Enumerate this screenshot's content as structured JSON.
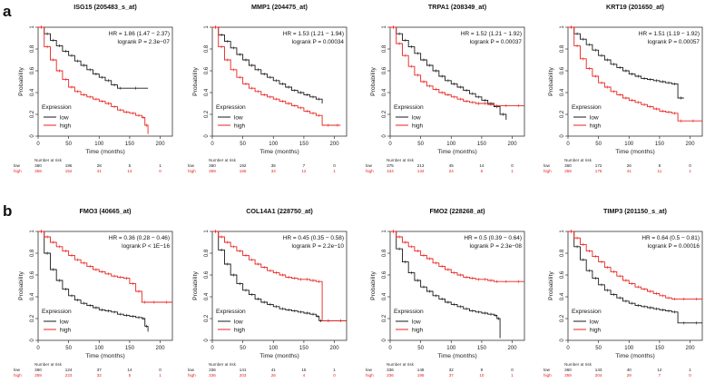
{
  "figure": {
    "panel_labels": [
      "a",
      "b"
    ],
    "legend_title": "Expression",
    "legend_low": "low",
    "legend_high": "high",
    "xlabel": "Time (months)",
    "ylabel": "Probability",
    "risk_header": "Number at risk",
    "risk_low_label": "low",
    "risk_high_label": "high",
    "colors": {
      "low": "#1a1a1a",
      "high": "#e8231e",
      "axis": "#333333"
    }
  },
  "chart_data": [
    {
      "type": "line",
      "title": "ISG15 (205483_s_at)",
      "hr_text": "HR = 1.86 (1.47 − 2.37)",
      "p_text": "logrank P = 2.3e−07",
      "xlim": [
        0,
        220
      ],
      "ylim": [
        0,
        1
      ],
      "xticks": [
        0,
        50,
        100,
        150,
        200
      ],
      "yticks": [
        0,
        0.2,
        0.4,
        0.6,
        0.8,
        1
      ],
      "series": [
        {
          "name": "low",
          "x": [
            0,
            10,
            20,
            30,
            40,
            50,
            60,
            70,
            80,
            90,
            100,
            110,
            120,
            130,
            140,
            180
          ],
          "y": [
            1,
            0.94,
            0.88,
            0.83,
            0.78,
            0.74,
            0.69,
            0.65,
            0.61,
            0.57,
            0.54,
            0.51,
            0.47,
            0.44,
            0.44,
            0.44
          ]
        },
        {
          "name": "high",
          "x": [
            0,
            10,
            20,
            30,
            40,
            50,
            60,
            70,
            80,
            90,
            100,
            110,
            120,
            130,
            140,
            150,
            160,
            170,
            175,
            180
          ],
          "y": [
            1,
            0.82,
            0.7,
            0.6,
            0.52,
            0.45,
            0.41,
            0.38,
            0.36,
            0.34,
            0.32,
            0.3,
            0.27,
            0.24,
            0.22,
            0.21,
            0.19,
            0.17,
            0.1,
            0.02
          ]
        }
      ],
      "risk_times": [
        0,
        50,
        100,
        150,
        200
      ],
      "risk_low": [
        "360",
        "195",
        "28",
        "5",
        "1"
      ],
      "risk_high": [
        "359",
        "152",
        "41",
        "14",
        "0"
      ]
    },
    {
      "type": "line",
      "title": "MMP1 (204475_at)",
      "hr_text": "HR = 1.53 (1.21 − 1.94)",
      "p_text": "logrank P = 0.00034",
      "xlim": [
        0,
        220
      ],
      "ylim": [
        0,
        1
      ],
      "xticks": [
        0,
        50,
        100,
        150,
        200
      ],
      "yticks": [
        0,
        0.2,
        0.4,
        0.6,
        0.8,
        1
      ],
      "series": [
        {
          "name": "low",
          "x": [
            0,
            10,
            20,
            30,
            40,
            50,
            60,
            70,
            80,
            90,
            100,
            110,
            120,
            130,
            140,
            150,
            160,
            170,
            180
          ],
          "y": [
            1,
            0.93,
            0.87,
            0.81,
            0.75,
            0.7,
            0.65,
            0.61,
            0.57,
            0.54,
            0.51,
            0.48,
            0.45,
            0.42,
            0.4,
            0.38,
            0.36,
            0.34,
            0.3
          ]
        },
        {
          "name": "high",
          "x": [
            0,
            10,
            20,
            30,
            40,
            50,
            60,
            70,
            80,
            90,
            100,
            110,
            120,
            130,
            140,
            150,
            160,
            170,
            180,
            200,
            210
          ],
          "y": [
            1,
            0.82,
            0.7,
            0.61,
            0.54,
            0.48,
            0.44,
            0.41,
            0.38,
            0.36,
            0.34,
            0.32,
            0.3,
            0.28,
            0.26,
            0.23,
            0.21,
            0.19,
            0.1,
            0.1,
            0.1
          ]
        }
      ],
      "risk_times": [
        0,
        50,
        100,
        150,
        200
      ],
      "risk_low": [
        "360",
        "192",
        "35",
        "7",
        "0"
      ],
      "risk_high": [
        "359",
        "165",
        "34",
        "12",
        "1"
      ]
    },
    {
      "type": "line",
      "title": "TRPA1 (208349_at)",
      "hr_text": "HR = 1.52 (1.21 − 1.92)",
      "p_text": "logrank P = 0.00037",
      "xlim": [
        0,
        220
      ],
      "ylim": [
        0,
        1
      ],
      "xticks": [
        0,
        50,
        100,
        150,
        200
      ],
      "yticks": [
        0,
        0.2,
        0.4,
        0.6,
        0.8,
        1
      ],
      "series": [
        {
          "name": "low",
          "x": [
            0,
            10,
            20,
            30,
            40,
            50,
            60,
            70,
            80,
            90,
            100,
            110,
            120,
            130,
            140,
            150,
            160,
            170,
            180,
            190
          ],
          "y": [
            1,
            0.94,
            0.88,
            0.82,
            0.76,
            0.7,
            0.65,
            0.6,
            0.55,
            0.51,
            0.48,
            0.45,
            0.42,
            0.39,
            0.36,
            0.33,
            0.3,
            0.27,
            0.2,
            0.15
          ]
        },
        {
          "name": "high",
          "x": [
            0,
            10,
            20,
            30,
            40,
            50,
            60,
            70,
            80,
            90,
            100,
            110,
            120,
            130,
            140,
            150,
            160,
            170,
            180,
            200,
            220
          ],
          "y": [
            1,
            0.85,
            0.74,
            0.64,
            0.56,
            0.5,
            0.46,
            0.43,
            0.4,
            0.38,
            0.36,
            0.34,
            0.32,
            0.31,
            0.3,
            0.3,
            0.29,
            0.28,
            0.28,
            0.28,
            0.28
          ]
        }
      ],
      "risk_times": [
        0,
        50,
        100,
        150,
        200
      ],
      "risk_low": [
        "375",
        "213",
        "45",
        "14",
        "0"
      ],
      "risk_high": [
        "344",
        "134",
        "24",
        "5",
        "1"
      ]
    },
    {
      "type": "line",
      "title": "KRT19 (201650_at)",
      "hr_text": "HR = 1.51 (1.19 − 1.92)",
      "p_text": "logrank P = 0.00057",
      "xlim": [
        0,
        220
      ],
      "ylim": [
        0,
        1
      ],
      "xticks": [
        0,
        50,
        100,
        150,
        200
      ],
      "yticks": [
        0,
        0.2,
        0.4,
        0.6,
        0.8,
        1
      ],
      "series": [
        {
          "name": "low",
          "x": [
            0,
            10,
            20,
            30,
            40,
            50,
            60,
            70,
            80,
            90,
            100,
            110,
            120,
            130,
            140,
            150,
            160,
            170,
            180,
            190
          ],
          "y": [
            1,
            0.94,
            0.89,
            0.84,
            0.79,
            0.74,
            0.7,
            0.66,
            0.63,
            0.6,
            0.57,
            0.55,
            0.53,
            0.52,
            0.51,
            0.5,
            0.49,
            0.48,
            0.35,
            0.35
          ]
        },
        {
          "name": "high",
          "x": [
            0,
            10,
            20,
            30,
            40,
            50,
            60,
            70,
            80,
            90,
            100,
            110,
            120,
            130,
            140,
            150,
            160,
            170,
            180,
            190,
            220
          ],
          "y": [
            1,
            0.83,
            0.71,
            0.62,
            0.55,
            0.49,
            0.45,
            0.41,
            0.38,
            0.35,
            0.33,
            0.31,
            0.29,
            0.27,
            0.25,
            0.23,
            0.22,
            0.21,
            0.14,
            0.14,
            0.14
          ]
        }
      ],
      "risk_times": [
        0,
        50,
        100,
        150,
        200
      ],
      "risk_low": [
        "360",
        "172",
        "26",
        "8",
        "0"
      ],
      "risk_high": [
        "359",
        "175",
        "41",
        "11",
        "1"
      ]
    },
    {
      "type": "line",
      "title": "FMO3 (40665_at)",
      "hr_text": "HR = 0.36 (0.28 − 0.46)",
      "p_text": "logrank P < 1E−16",
      "xlim": [
        0,
        220
      ],
      "ylim": [
        0,
        1
      ],
      "xticks": [
        0,
        50,
        100,
        150,
        200
      ],
      "yticks": [
        0,
        0.2,
        0.4,
        0.6,
        0.8,
        1
      ],
      "series": [
        {
          "name": "low",
          "x": [
            0,
            10,
            20,
            30,
            40,
            50,
            60,
            70,
            80,
            90,
            100,
            110,
            120,
            130,
            140,
            150,
            160,
            170,
            175,
            180
          ],
          "y": [
            1,
            0.8,
            0.65,
            0.55,
            0.47,
            0.41,
            0.37,
            0.34,
            0.32,
            0.3,
            0.28,
            0.27,
            0.26,
            0.24,
            0.23,
            0.22,
            0.21,
            0.2,
            0.13,
            0.08
          ]
        },
        {
          "name": "high",
          "x": [
            0,
            10,
            20,
            30,
            40,
            50,
            60,
            70,
            80,
            90,
            100,
            110,
            120,
            130,
            140,
            150,
            160,
            170,
            180,
            200,
            220
          ],
          "y": [
            1,
            0.95,
            0.9,
            0.86,
            0.82,
            0.78,
            0.74,
            0.71,
            0.68,
            0.65,
            0.63,
            0.61,
            0.59,
            0.58,
            0.57,
            0.52,
            0.45,
            0.35,
            0.35,
            0.35,
            0.35
          ]
        }
      ],
      "risk_times": [
        0,
        50,
        100,
        150,
        200
      ],
      "risk_low": [
        "360",
        "124",
        "37",
        "14",
        "0"
      ],
      "risk_high": [
        "359",
        "223",
        "32",
        "5",
        "1"
      ]
    },
    {
      "type": "line",
      "title": "COL14A1 (228750_at)",
      "hr_text": "HR = 0.45 (0.35 − 0.58)",
      "p_text": "logrank P = 2.2e−10",
      "xlim": [
        0,
        220
      ],
      "ylim": [
        0,
        1
      ],
      "xticks": [
        0,
        50,
        100,
        150,
        200
      ],
      "yticks": [
        0,
        0.2,
        0.4,
        0.6,
        0.8,
        1
      ],
      "series": [
        {
          "name": "low",
          "x": [
            0,
            10,
            20,
            30,
            40,
            50,
            60,
            70,
            80,
            90,
            100,
            110,
            120,
            130,
            140,
            150,
            160,
            170,
            175,
            180,
            200,
            220
          ],
          "y": [
            1,
            0.83,
            0.7,
            0.6,
            0.52,
            0.46,
            0.42,
            0.38,
            0.35,
            0.33,
            0.31,
            0.29,
            0.28,
            0.27,
            0.26,
            0.25,
            0.24,
            0.22,
            0.18,
            0.18,
            0.18,
            0.18
          ]
        },
        {
          "name": "high",
          "x": [
            0,
            10,
            20,
            30,
            40,
            50,
            60,
            70,
            80,
            90,
            100,
            110,
            120,
            130,
            140,
            150,
            160,
            170,
            180,
            200,
            220
          ],
          "y": [
            1,
            0.95,
            0.9,
            0.86,
            0.82,
            0.78,
            0.74,
            0.7,
            0.67,
            0.64,
            0.62,
            0.6,
            0.58,
            0.57,
            0.56,
            0.56,
            0.55,
            0.54,
            0.18,
            0.18,
            0.18
          ]
        }
      ],
      "risk_times": [
        0,
        50,
        100,
        150,
        200
      ],
      "risk_low": [
        "336",
        "141",
        "41",
        "15",
        "1"
      ],
      "risk_high": [
        "336",
        "203",
        "26",
        "4",
        "0"
      ]
    },
    {
      "type": "line",
      "title": "FMO2 (228268_at)",
      "hr_text": "HR = 0.5 (0.39 − 0.64)",
      "p_text": "logrank P = 2.3e−08",
      "xlim": [
        0,
        220
      ],
      "ylim": [
        0,
        1
      ],
      "xticks": [
        0,
        50,
        100,
        150,
        200
      ],
      "yticks": [
        0,
        0.2,
        0.4,
        0.6,
        0.8,
        1
      ],
      "series": [
        {
          "name": "low",
          "x": [
            0,
            10,
            20,
            30,
            40,
            50,
            60,
            70,
            80,
            90,
            100,
            110,
            120,
            130,
            140,
            150,
            160,
            170,
            175,
            180
          ],
          "y": [
            1,
            0.84,
            0.72,
            0.62,
            0.55,
            0.49,
            0.45,
            0.41,
            0.38,
            0.35,
            0.33,
            0.31,
            0.29,
            0.27,
            0.26,
            0.25,
            0.24,
            0.23,
            0.2,
            0.02
          ]
        },
        {
          "name": "high",
          "x": [
            0,
            10,
            20,
            30,
            40,
            50,
            60,
            70,
            80,
            90,
            100,
            110,
            120,
            130,
            140,
            150,
            160,
            170,
            180,
            200,
            220
          ],
          "y": [
            1,
            0.95,
            0.9,
            0.86,
            0.82,
            0.78,
            0.75,
            0.71,
            0.68,
            0.65,
            0.62,
            0.6,
            0.58,
            0.57,
            0.56,
            0.56,
            0.55,
            0.54,
            0.54,
            0.54,
            0.54
          ]
        }
      ],
      "risk_times": [
        0,
        50,
        100,
        150,
        200
      ],
      "risk_low": [
        "336",
        "148",
        "32",
        "9",
        "0"
      ],
      "risk_high": [
        "336",
        "196",
        "37",
        "10",
        "1"
      ]
    },
    {
      "type": "line",
      "title": "TIMP3 (201150_s_at)",
      "hr_text": "HR = 0.64 (0.5 − 0.81)",
      "p_text": "logrank P = 0.00016",
      "xlim": [
        0,
        220
      ],
      "ylim": [
        0,
        1
      ],
      "xticks": [
        0,
        50,
        100,
        150,
        200
      ],
      "yticks": [
        0,
        0.2,
        0.4,
        0.6,
        0.8,
        1
      ],
      "series": [
        {
          "name": "low",
          "x": [
            0,
            10,
            20,
            30,
            40,
            50,
            60,
            70,
            80,
            90,
            100,
            110,
            120,
            130,
            140,
            150,
            160,
            170,
            180,
            200,
            220
          ],
          "y": [
            1,
            0.86,
            0.74,
            0.64,
            0.57,
            0.51,
            0.46,
            0.42,
            0.39,
            0.36,
            0.34,
            0.32,
            0.31,
            0.3,
            0.29,
            0.28,
            0.27,
            0.26,
            0.16,
            0.16,
            0.16
          ]
        },
        {
          "name": "high",
          "x": [
            0,
            10,
            20,
            30,
            40,
            50,
            60,
            70,
            80,
            90,
            100,
            110,
            120,
            130,
            140,
            150,
            160,
            170,
            180,
            200,
            220
          ],
          "y": [
            1,
            0.94,
            0.88,
            0.82,
            0.77,
            0.72,
            0.67,
            0.63,
            0.59,
            0.55,
            0.52,
            0.49,
            0.47,
            0.45,
            0.43,
            0.41,
            0.39,
            0.38,
            0.38,
            0.38,
            0.38
          ]
        }
      ],
      "risk_times": [
        0,
        50,
        100,
        150,
        200
      ],
      "risk_low": [
        "360",
        "143",
        "40",
        "12",
        "1"
      ],
      "risk_high": [
        "359",
        "204",
        "29",
        "7",
        "0"
      ]
    }
  ]
}
